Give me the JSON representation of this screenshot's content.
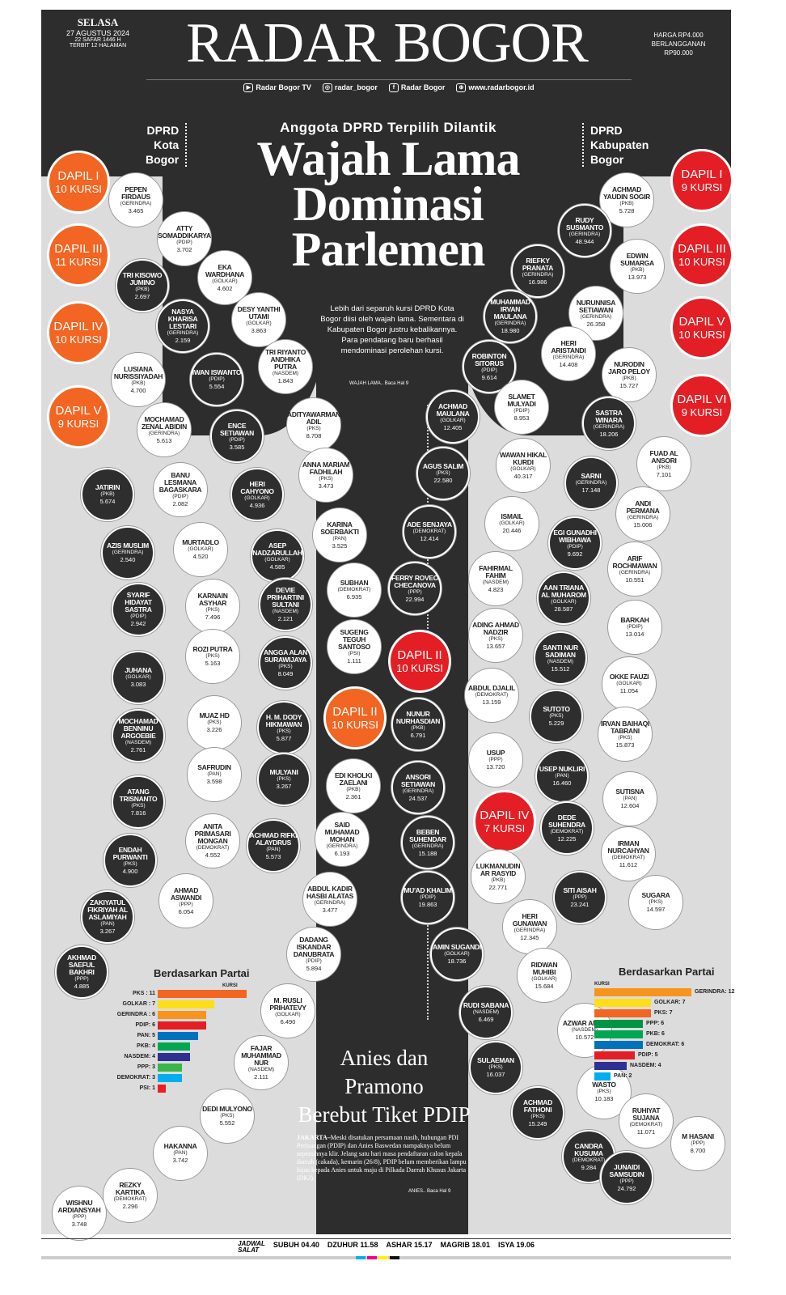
{
  "header": {
    "day": "SELASA",
    "date": "27 AGUSTUS 2024",
    "hijri": "22 SAFAR 1446 H",
    "pages": "TERBIT 12 HALAMAN",
    "title": "RADAR BOGOR",
    "price1": "HARGA RP4.000",
    "price2": "BERLANGGANAN",
    "price3": "RP90.000",
    "social": [
      {
        "icon": "youtube-icon",
        "label": "Radar Bogor TV"
      },
      {
        "icon": "instagram-icon",
        "label": "radar_bogor"
      },
      {
        "icon": "x-facebook-icon",
        "label": "Radar Bogor"
      },
      {
        "icon": "globe-icon",
        "label": "www.radarbogor.id"
      }
    ]
  },
  "section_left": [
    "DPRD",
    "Kota",
    "Bogor"
  ],
  "section_right": [
    "DPRD",
    "Kabupaten",
    "Bogor"
  ],
  "kicker": "Anggota DPRD Terpilih Dilantik",
  "headline": [
    "Wajah Lama",
    "Dominasi",
    "Parlemen"
  ],
  "lede": "Lebih dari separuh kursi DPRD Kota Bogor diisi oleh wajah lama. Sementara di Kabupaten Bogor justru kebalikannya. Para pendatang baru berhasil mendominasi perolehan kursi.",
  "lede_ref": "WAJAH LAMA.. Baca Hal 9",
  "dapil": [
    {
      "a": "DAPIL I",
      "b": "10 KURSI",
      "c": "org"
    },
    {
      "a": "DAPIL III",
      "b": "11 KURSI",
      "c": "org"
    },
    {
      "a": "DAPIL IV",
      "b": "10 KURSI",
      "c": "org"
    },
    {
      "a": "DAPIL V",
      "b": "9 KURSI",
      "c": "org"
    },
    {
      "a": "DAPIL II",
      "b": "10 KURSI",
      "c": "org"
    },
    {
      "a": "DAPIL I",
      "b": "9 KURSI",
      "c": "red"
    },
    {
      "a": "DAPIL III",
      "b": "10 KURSI",
      "c": "red"
    },
    {
      "a": "DAPIL V",
      "b": "10 KURSI",
      "c": "red"
    },
    {
      "a": "DAPIL VI",
      "b": "9 KURSI",
      "c": "red"
    },
    {
      "a": "DAPIL II",
      "b": "10 KURSI",
      "c": "red"
    },
    {
      "a": "DAPIL IV",
      "b": "7 KURSI",
      "c": "red"
    }
  ],
  "members": [
    {
      "n": "PEPEN FIRDAUS",
      "p": "(GERINDRA)",
      "v": "3.465",
      "t": "w"
    },
    {
      "n": "ATTY SOMADDIKARYA",
      "p": "(PDIP)",
      "v": "3.702",
      "t": "w"
    },
    {
      "n": "EKA WARDHANA",
      "p": "(GOLKAR)",
      "v": "4.602",
      "t": "w"
    },
    {
      "n": "DESY YANTHI UTAMI",
      "p": "(GOLKAR)",
      "v": "3.863",
      "t": "w"
    },
    {
      "n": "TRI KISOWO JUMINO",
      "p": "(PKB)",
      "v": "2.697",
      "t": "d"
    },
    {
      "n": "NASYA KHARISA LESTARI",
      "p": "(GERINDRA)",
      "v": "2.159",
      "t": "d"
    },
    {
      "n": "TRI RIYANTO ANDHIKA PUTRA",
      "p": "(NASDEM)",
      "v": "1.843",
      "t": "w"
    },
    {
      "n": "LUSIANA NURISSIYADAH",
      "p": "(PKB)",
      "v": "4.700",
      "t": "w"
    },
    {
      "n": "IWAN ISWANTO",
      "p": "(PDIP)",
      "v": "5.554",
      "t": "d"
    },
    {
      "n": "ADITYAWARMAN ADIL",
      "p": "(PKS)",
      "v": "8.708",
      "t": "w"
    },
    {
      "n": "MOCHAMAD ZENAL ABIDIN",
      "p": "(GERINDRA)",
      "v": "5.613",
      "t": "w"
    },
    {
      "n": "ENCE SETIAWAN",
      "p": "(PDIP)",
      "v": "3.585",
      "t": "d"
    },
    {
      "n": "ANNA MARIAM FADHILAH",
      "p": "(PKS)",
      "v": "3.473",
      "t": "w"
    },
    {
      "n": "JATIRIN",
      "p": "(PKB)",
      "v": "5.674",
      "t": "d"
    },
    {
      "n": "BANU LESMANA BAGASKARA",
      "p": "(PDIP)",
      "v": "2.082",
      "t": "w"
    },
    {
      "n": "HERI CAHYONO",
      "p": "(GOLKAR)",
      "v": "4.936",
      "t": "d"
    },
    {
      "n": "KARINA SOERBAKTI",
      "p": "(PAN)",
      "v": "3.525",
      "t": "w"
    },
    {
      "n": "AZIS MUSLIM",
      "p": "(GERINDRA)",
      "v": "2.540",
      "t": "d"
    },
    {
      "n": "MURTADLO",
      "p": "(GOLKAR)",
      "v": "4.520",
      "t": "w"
    },
    {
      "n": "ASEP NADZARULLAH",
      "p": "(GOLKAR)",
      "v": "4.585",
      "t": "d"
    },
    {
      "n": "SUBHAN",
      "p": "(DEMOKRAT)",
      "v": "6.935",
      "t": "w"
    },
    {
      "n": "SYARIF HIDAYAT SASTRA",
      "p": "(PDIP)",
      "v": "2.942",
      "t": "d"
    },
    {
      "n": "KARNAIN ASYHAR",
      "p": "(PKS)",
      "v": "7.496",
      "t": "w"
    },
    {
      "n": "DEVIE PRIHARTINI SULTANI",
      "p": "(NASDEM)",
      "v": "2.121",
      "t": "d"
    },
    {
      "n": "SUGENG TEGUH SANTOSO",
      "p": "(PSI)",
      "v": "1.111",
      "t": "w"
    },
    {
      "n": "ROZI PUTRA",
      "p": "(PKS)",
      "v": "5.163",
      "t": "w"
    },
    {
      "n": "ANGGA ALAN SURAWIJAYA",
      "p": "(PKS)",
      "v": "8.049",
      "t": "d"
    },
    {
      "n": "JUHANA",
      "p": "(GOLKAR)",
      "v": "3.083",
      "t": "d"
    },
    {
      "n": "MUAZ HD",
      "p": "(PKS)",
      "v": "3.226",
      "t": "w"
    },
    {
      "n": "H. M. DODY HIKMAWAN",
      "p": "(PKS)",
      "v": "5.877",
      "t": "d"
    },
    {
      "n": "MOCHAMAD BENNINU ARGOEBIE",
      "p": "(NASDEM)",
      "v": "2.761",
      "t": "d"
    },
    {
      "n": "SAFRUDIN",
      "p": "(PAN)",
      "v": "3.598",
      "t": "w"
    },
    {
      "n": "MULYANI",
      "p": "(PKS)",
      "v": "3.267",
      "t": "d"
    },
    {
      "n": "EDI KHOLKI ZAELANI",
      "p": "(PKB)",
      "v": "2.361",
      "t": "w"
    },
    {
      "n": "ATANG TRISNANTO",
      "p": "(PKS)",
      "v": "7.816",
      "t": "d"
    },
    {
      "n": "ANITA PRIMASARI MONGAN",
      "p": "(DEMOKRAT)",
      "v": "4.552",
      "t": "w"
    },
    {
      "n": "ACHMAD RIFKI ALAYDRUS",
      "p": "(PAN)",
      "v": "5.573",
      "t": "d"
    },
    {
      "n": "SAID MUHAMAD MOHAN",
      "p": "(GERINDRA)",
      "v": "6.193",
      "t": "w"
    },
    {
      "n": "ENDAH PURWANTI",
      "p": "(PKS)",
      "v": "4.900",
      "t": "d"
    },
    {
      "n": "AHMAD ASWANDI",
      "p": "(PPP)",
      "v": "6.054",
      "t": "w"
    },
    {
      "n": "ABDUL KADIR HASBI ALATAS",
      "p": "(GERINDRA)",
      "v": "3.477",
      "t": "w"
    },
    {
      "n": "ZAKIYATUL FIKRIYAH AL ASLAMIYAH",
      "p": "(PAN)",
      "v": "3.267",
      "t": "d"
    },
    {
      "n": "DADANG ISKANDAR DANUBRATA",
      "p": "(PDIP)",
      "v": "5.894",
      "t": "w"
    },
    {
      "n": "AKHMAD SAEFUL BAKHRI",
      "p": "(PPP)",
      "v": "4.885",
      "t": "d"
    },
    {
      "n": "M. RUSLI PRIHATEVY",
      "p": "(GOLKAR)",
      "v": "6.490",
      "t": "w"
    },
    {
      "n": "FAJAR MUHAMMAD NUR",
      "p": "(NASDEM)",
      "v": "2.111",
      "t": "w"
    },
    {
      "n": "DEDI MULYONO",
      "p": "(PKS)",
      "v": "5.552",
      "t": "w"
    },
    {
      "n": "HAKANNA",
      "p": "(PAN)",
      "v": "3.742",
      "t": "w"
    },
    {
      "n": "REZKY KARTIKA",
      "p": "(DEMOKRAT)",
      "v": "2.296",
      "t": "w"
    },
    {
      "n": "WISHNU ARDIANSYAH",
      "p": "(PPP)",
      "v": "3.748",
      "t": "w"
    },
    {
      "n": "ACHMAD YAUDIN SOGIR",
      "p": "(PKB)",
      "v": "5.728",
      "t": "w"
    },
    {
      "n": "RUDY SUSMANTO",
      "p": "(GERINDRA)",
      "v": "48.944",
      "t": "d"
    },
    {
      "n": "EDWIN SUMARGA",
      "p": "(PKB)",
      "v": "13.973",
      "t": "w"
    },
    {
      "n": "RIEFKY PRANATA",
      "p": "(GERINDRA)",
      "v": "16.986",
      "t": "d"
    },
    {
      "n": "NURUNNISA SETIAWAN",
      "p": "(GERINDRA)",
      "v": "26.358",
      "t": "w"
    },
    {
      "n": "MUHAMMAD IRVAN MAULANA",
      "p": "(GERINDRA)",
      "v": "18.980",
      "t": "d"
    },
    {
      "n": "HERI ARISTANDI",
      "p": "(GERINDRA)",
      "v": "14.408",
      "t": "w"
    },
    {
      "n": "ROBINTON SITORUS",
      "p": "(PDIP)",
      "v": "9.614",
      "t": "d"
    },
    {
      "n": "NURODIN JARO PELOY",
      "p": "(PKB)",
      "v": "15.727",
      "t": "w"
    },
    {
      "n": "SLAMET MULYADI",
      "p": "(PDIP)",
      "v": "8.953",
      "t": "w"
    },
    {
      "n": "ACHMAD MAULANA",
      "p": "(GOLKAR)",
      "v": "12.405",
      "t": "d"
    },
    {
      "n": "SASTRA WINARA",
      "p": "(GERINDRA)",
      "v": "18.206",
      "t": "d"
    },
    {
      "n": "FUAD AL ANSORI",
      "p": "(PKB)",
      "v": "7.101",
      "t": "w"
    },
    {
      "n": "WAWAN HIKAL KURDI",
      "p": "(GOLKAR)",
      "v": "40.317",
      "t": "w"
    },
    {
      "n": "AGUS SALIM",
      "p": "(PKS)",
      "v": "22.580",
      "t": "d"
    },
    {
      "n": "SARNI",
      "p": "(GERINDRA)",
      "v": "17.148",
      "t": "d"
    },
    {
      "n": "ANDI PERMANA",
      "p": "(GERINDRA)",
      "v": "15.006",
      "t": "w"
    },
    {
      "n": "ADE SENJAYA",
      "p": "(DEMOKRAT)",
      "v": "12.414",
      "t": "d"
    },
    {
      "n": "ISMAIL",
      "p": "(GOLKAR)",
      "v": "20.446",
      "t": "w"
    },
    {
      "n": "EGI GUNADHI WIBHAWA",
      "p": "(PDIP)",
      "v": "9.692",
      "t": "d"
    },
    {
      "n": "ARIF ROCHMAWAN",
      "p": "(GERINDRA)",
      "v": "10.551",
      "t": "w"
    },
    {
      "n": "FERRY ROVEO CHECANOVA",
      "p": "(PPP)",
      "v": "22.994",
      "t": "d"
    },
    {
      "n": "FAHIRMAL FAHIM",
      "p": "(NASDEM)",
      "v": "4.823",
      "t": "w"
    },
    {
      "n": "AAN TRIANA AL MUHAROM",
      "p": "(GOLKAR)",
      "v": "28.587",
      "t": "d"
    },
    {
      "n": "BARKAH",
      "p": "(PDIP)",
      "v": "13.014",
      "t": "w"
    },
    {
      "n": "ADING AHMAD NADZIR",
      "p": "(PKS)",
      "v": "13.657",
      "t": "w"
    },
    {
      "n": "SANTI NUR SADIMAN",
      "p": "(NASDEM)",
      "v": "15.512",
      "t": "d"
    },
    {
      "n": "OKKE FAUZI",
      "p": "(GOLKAR)",
      "v": "11.054",
      "t": "w"
    },
    {
      "n": "ABDUL DJALIL",
      "p": "(DEMOKRAT)",
      "v": "13.159",
      "t": "w"
    },
    {
      "n": "NUNUR NURHASDIAN",
      "p": "(PKB)",
      "v": "6.791",
      "t": "d"
    },
    {
      "n": "SUTOTO",
      "p": "(PKS)",
      "v": "5.229",
      "t": "d"
    },
    {
      "n": "IRVAN BAIHAQI TABRANI",
      "p": "(PKS)",
      "v": "15.873",
      "t": "w"
    },
    {
      "n": "USUP",
      "p": "(PPP)",
      "v": "13.720",
      "t": "w"
    },
    {
      "n": "USEP NUKLIRI",
      "p": "(PAN)",
      "v": "16.460",
      "t": "d"
    },
    {
      "n": "SUTISNA",
      "p": "(PAN)",
      "v": "12.604",
      "t": "w"
    },
    {
      "n": "ANSORI SETIAWAN",
      "p": "(GERINDRA)",
      "v": "24.537",
      "t": "d"
    },
    {
      "n": "DEDE SUHENDRA",
      "p": "(DEMOKRAT)",
      "v": "12.225",
      "t": "d"
    },
    {
      "n": "IRMAN NURCAHYAN",
      "p": "(DEMOKRAT)",
      "v": "11.612",
      "t": "w"
    },
    {
      "n": "BEBEN SUHENDAR",
      "p": "(GERINDRA)",
      "v": "15.188",
      "t": "d"
    },
    {
      "n": "LUKMANUDIN AR RASYID",
      "p": "(PKB)",
      "v": "22.771",
      "t": "w"
    },
    {
      "n": "SITI AISAH",
      "p": "(PPP)",
      "v": "23.241",
      "t": "d"
    },
    {
      "n": "SUGARA",
      "p": "(PKS)",
      "v": "14.597",
      "t": "w"
    },
    {
      "n": "MU'AD KHALIM",
      "p": "(PDIP)",
      "v": "19.863",
      "t": "d"
    },
    {
      "n": "HERI GUNAWAN",
      "p": "(GERINDRA)",
      "v": "12.345",
      "t": "w"
    },
    {
      "n": "AMIN SUGANDI",
      "p": "(GOLKAR)",
      "v": "18.736",
      "t": "d"
    },
    {
      "n": "RIDWAN MUHIBI",
      "p": "(GOLKAR)",
      "v": "15.684",
      "t": "w"
    },
    {
      "n": "RUDI SABANA",
      "p": "(NASDEM)",
      "v": "6.469",
      "t": "d"
    },
    {
      "n": "AZWAR ANAS",
      "p": "(NASDEM)",
      "v": "10.572",
      "t": "w"
    },
    {
      "n": "SULAEMAN",
      "p": "(PKS)",
      "v": "16.037",
      "t": "d"
    },
    {
      "n": "WASTO",
      "p": "(PKS)",
      "v": "10.183",
      "t": "w"
    },
    {
      "n": "RUHIYAT SUJANA",
      "p": "(DEMOKRAT)",
      "v": "11.071",
      "t": "w"
    },
    {
      "n": "ACHMAD FATHONI",
      "p": "(PKS)",
      "v": "15.249",
      "t": "d"
    },
    {
      "n": "M HASANI",
      "p": "(PPP)",
      "v": "8.700",
      "t": "w"
    },
    {
      "n": "CANDRA KUSUMA",
      "p": "(DEMOKRAT)",
      "v": "9.284",
      "t": "d"
    },
    {
      "n": "JUNAIDI SAMSUDIN",
      "p": "(PPP)",
      "v": "24.792",
      "t": "d"
    }
  ],
  "chart_data": [
    {
      "type": "bar",
      "title": "Berdasarkan Partai",
      "unit": "KURSI",
      "categories": [
        "PKS : 11",
        "GOLKAR : 7",
        "GERINDRA : 6",
        "PDIP: 6",
        "PAN: 5",
        "PKB: 4",
        "NASDEM: 4",
        "PPP: 3",
        "DEMOKRAT: 3",
        "PSI: 1"
      ],
      "values": [
        11,
        7,
        6,
        6,
        5,
        4,
        4,
        3,
        3,
        1
      ],
      "colors": [
        "#f26522",
        "#ffde17",
        "#f7941d",
        "#e31e24",
        "#0072bc",
        "#00a651",
        "#2e3192",
        "#39b54a",
        "#00aeef",
        "#ed1c24"
      ]
    },
    {
      "type": "bar",
      "title": "Berdasarkan Partai",
      "unit": "KURSI",
      "categories": [
        "GERINDRA: 12",
        "GOLKAR: 7",
        "PKS: 7",
        "PPP: 6",
        "PKB: 6",
        "DEMOKRAT: 6",
        "PDIP: 5",
        "NASDEM: 4",
        "PAN: 2"
      ],
      "values": [
        12,
        7,
        7,
        6,
        6,
        6,
        5,
        4,
        2
      ],
      "colors": [
        "#f7941d",
        "#ffde17",
        "#f26522",
        "#009444",
        "#00a651",
        "#0072bc",
        "#e31e24",
        "#2e3192",
        "#00aeef"
      ]
    }
  ],
  "article": {
    "headline": [
      "Anies dan",
      "Pramono",
      "Berebut  Tiket PDIP"
    ],
    "dateline": "JAKARTA–",
    "body": "Meski disatukan persamaan nasib, hubungan PDI Perjuangan (PDIP) dan Anies Baswedan nampaknya belum sepenuhnya klir. Jelang satu hari masa pendaftaran calon kepala daerah (cakada), kemarin (26/8), PDIP belum memberikan lampu hijau kepada Anies untuk maju di Pilkada Daerah Khusus Jakarta (DKJ).",
    "ref": "ANIES.. Baca Hal 9"
  },
  "footer": {
    "label1": "JADWAL",
    "label2": "SALAT",
    "times": [
      "SUBUH 04.40",
      "DZUHUR 11.58",
      "ASHAR 15.17",
      "MAGRIB 18.01",
      "ISYA 19.06"
    ]
  }
}
